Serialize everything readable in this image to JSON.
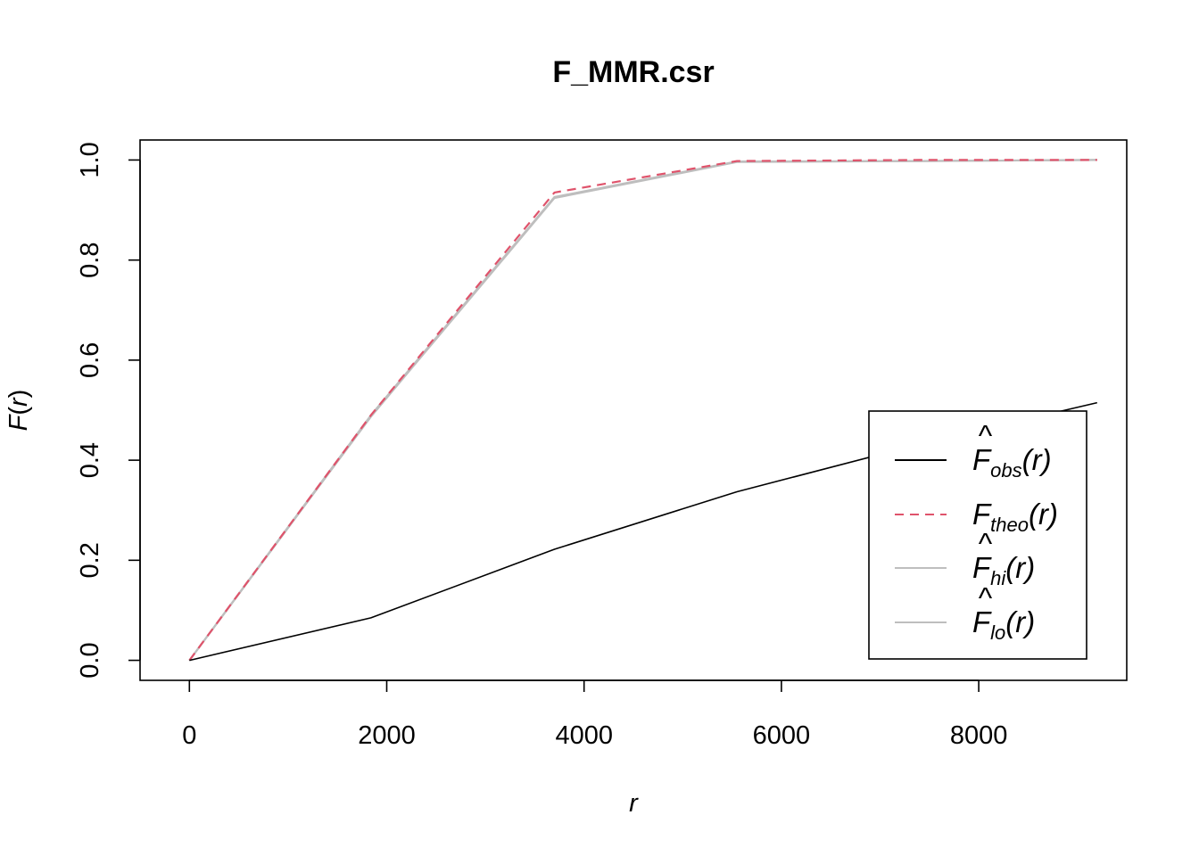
{
  "chart_data": {
    "type": "line",
    "title": "F_MMR.csr",
    "xlabel": "r",
    "ylabel_main": "F",
    "ylabel_var": "r",
    "xlim": [
      -500,
      9500
    ],
    "ylim": [
      -0.04,
      1.04
    ],
    "xticks": [
      0,
      2000,
      4000,
      6000,
      8000
    ],
    "xtick_labels": [
      "0",
      "2000",
      "4000",
      "6000",
      "8000"
    ],
    "yticks": [
      0.0,
      0.2,
      0.4,
      0.6,
      0.8,
      1.0
    ],
    "ytick_labels": [
      "0.0",
      "0.2",
      "0.4",
      "0.6",
      "0.8",
      "1.0"
    ],
    "grid": false,
    "legend_position": "bottom-right",
    "series": [
      {
        "key": "obs",
        "name": "obs",
        "hat": true,
        "color": "#000000",
        "dash": "",
        "x": [
          0,
          1840,
          3700,
          5550,
          7400,
          9200
        ],
        "y": [
          0.0,
          0.085,
          0.222,
          0.337,
          0.432,
          0.515
        ]
      },
      {
        "key": "theo",
        "name": "theo",
        "hat": false,
        "color": "#DF536B",
        "dash": "10,7",
        "x": [
          0,
          1840,
          3700,
          5550,
          7400,
          9200
        ],
        "y": [
          0.0,
          0.49,
          0.935,
          0.998,
          1.0,
          1.0
        ]
      },
      {
        "key": "hi",
        "name": "hi",
        "hat": true,
        "color": "#BEBEBE",
        "dash": "",
        "x": [
          0,
          1840,
          3700,
          5550,
          7400,
          9200
        ],
        "y": [
          0.0,
          0.49,
          0.926,
          0.997,
          0.998,
          1.0
        ]
      },
      {
        "key": "lo",
        "name": "lo",
        "hat": true,
        "color": "#BEBEBE",
        "dash": "",
        "x": [
          0,
          1840,
          3700,
          5550,
          7400,
          9200
        ],
        "y": [
          0.0,
          0.487,
          0.924,
          0.996,
          0.998,
          1.0
        ]
      }
    ],
    "legend": [
      {
        "symbol": "F",
        "hat": true,
        "sub": "obs",
        "arg": "(r)",
        "color": "#000000",
        "dash": ""
      },
      {
        "symbol": "F",
        "hat": false,
        "sub": "theo",
        "arg": "(r)",
        "color": "#DF536B",
        "dash": "10,7"
      },
      {
        "symbol": "F",
        "hat": true,
        "sub": "hi",
        "arg": "(r)",
        "color": "#BEBEBE",
        "dash": ""
      },
      {
        "symbol": "F",
        "hat": true,
        "sub": "lo",
        "arg": "(r)",
        "color": "#BEBEBE",
        "dash": ""
      }
    ]
  }
}
